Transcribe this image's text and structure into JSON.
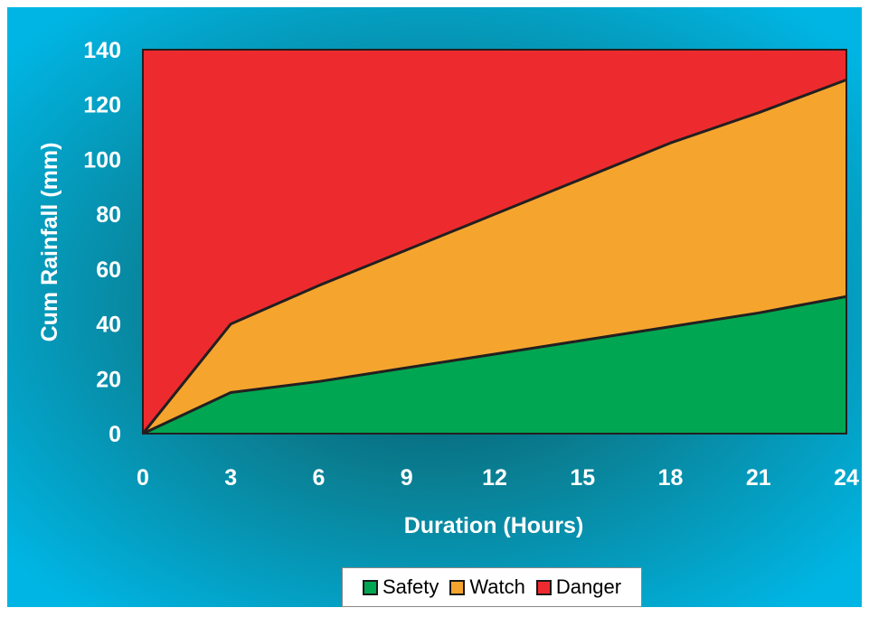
{
  "chart_data": {
    "type": "area",
    "xlabel": "Duration (Hours)",
    "ylabel": "Cum Rainfall (mm)",
    "xlim": [
      0,
      24
    ],
    "ylim": [
      0,
      140
    ],
    "x_ticks": [
      0,
      3,
      6,
      9,
      12,
      15,
      18,
      21,
      24
    ],
    "y_ticks": [
      0,
      20,
      40,
      60,
      80,
      100,
      120,
      140
    ],
    "x": [
      0,
      3,
      6,
      9,
      12,
      15,
      18,
      21,
      24
    ],
    "grid": false,
    "legend_position": "bottom",
    "series": [
      {
        "name": "Safety",
        "color": "#00a651",
        "values": [
          0,
          15,
          19,
          24,
          29,
          34,
          39,
          44,
          50
        ]
      },
      {
        "name": "Watch",
        "color": "#f5a52e",
        "values": [
          0,
          40,
          54,
          67,
          80,
          93,
          106,
          117,
          129
        ]
      },
      {
        "name": "Danger",
        "color": "#ed2b2e",
        "values": [
          140,
          140,
          140,
          140,
          140,
          140,
          140,
          140,
          140
        ]
      }
    ],
    "background_colors": {
      "frame_outer": "#00b2e0",
      "frame_center": "#005a66"
    }
  }
}
